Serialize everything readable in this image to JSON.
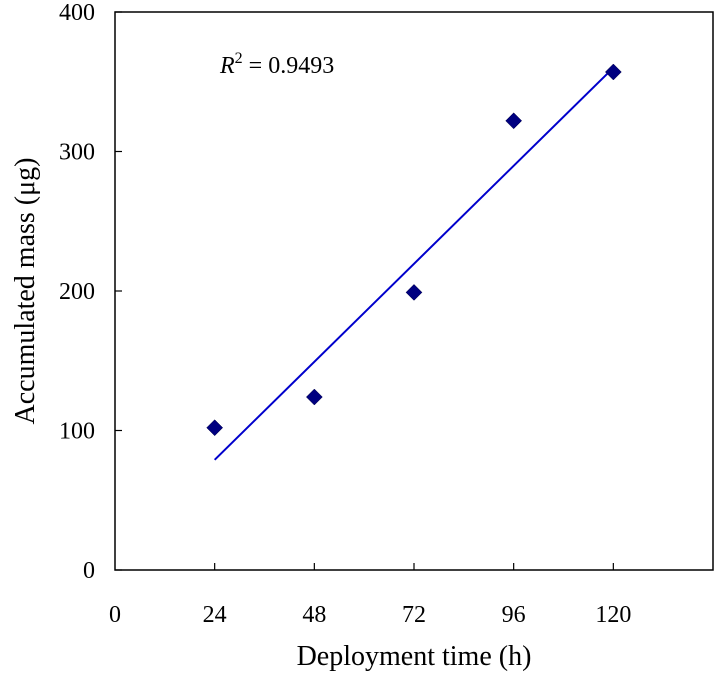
{
  "chart_data": {
    "type": "scatter",
    "title": "",
    "xlabel": "Deployment time (h)",
    "ylabel": "Accumulated mass (μg)",
    "xlim": [
      0,
      144
    ],
    "ylim": [
      0,
      400
    ],
    "xticks": [
      0,
      24,
      48,
      72,
      96,
      120
    ],
    "yticks": [
      0,
      100,
      200,
      300,
      400
    ],
    "grid": false,
    "legend": null,
    "series": [
      {
        "name": "Accumulated mass",
        "marker": "diamond",
        "color": "#000080",
        "x": [
          24,
          48,
          72,
          96,
          120
        ],
        "y": [
          102,
          124,
          199,
          322,
          357
        ]
      }
    ],
    "trendline": {
      "type": "linear",
      "color": "#0000CC",
      "x": [
        24,
        120
      ],
      "y": [
        79,
        360
      ],
      "r_squared": 0.9493
    },
    "annotations": [
      {
        "text_prefix": "R",
        "superscript": "2",
        "text_suffix": " = 0.9493",
        "x": 24,
        "y": 360
      }
    ]
  }
}
